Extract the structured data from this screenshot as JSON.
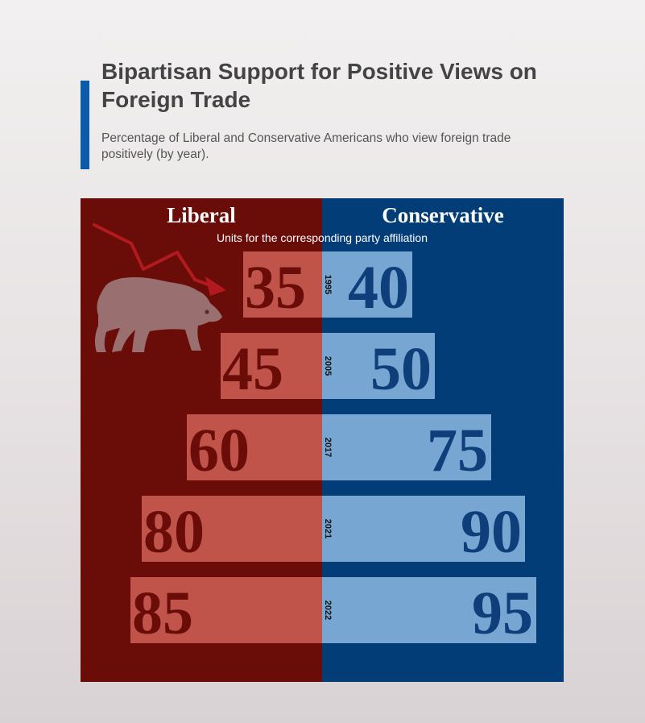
{
  "header": {
    "title": "Bipartisan Support for Positive Views on Foreign Trade",
    "subtitle": "Percentage of Liberal and Conservative Americans who view foreign trade positively (by year)."
  },
  "icons": {
    "bear": "bear-icon",
    "trend": "downward-trend-arrow-icon"
  },
  "colors": {
    "accent": "#0a5bab",
    "liberal_panel": "#6a0d08",
    "liberal_bar": "#c0544a",
    "liberal_text": "#6a0d08",
    "conservative_panel": "#033d78",
    "conservative_bar": "#78a6d2",
    "conservative_text": "#0e3f7b"
  },
  "chart_data": {
    "type": "bar",
    "layout": "back-to-back horizontal bars",
    "categories": [
      "1995",
      "2005",
      "2017",
      "2021",
      "2022"
    ],
    "series": [
      {
        "name": "Liberal",
        "values": [
          35,
          45,
          60,
          80,
          85
        ]
      },
      {
        "name": "Conservative",
        "values": [
          40,
          50,
          75,
          90,
          95
        ]
      }
    ],
    "unit_label": "Units for the corresponding party affiliation",
    "xlim": [
      0,
      100
    ],
    "grid": false
  }
}
